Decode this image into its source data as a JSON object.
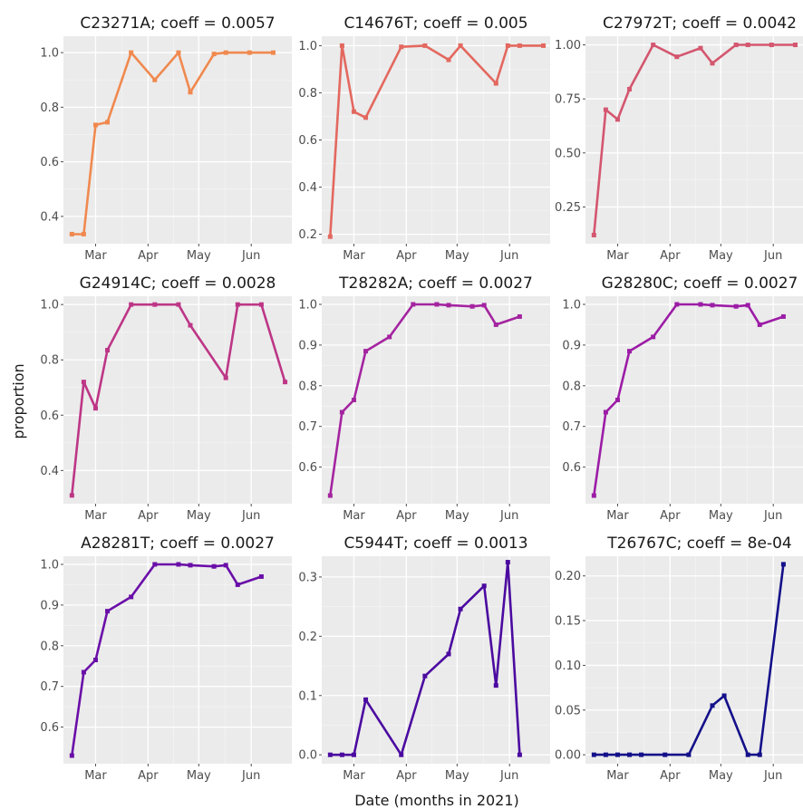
{
  "figure": {
    "xlabel": "Date (months in 2021)",
    "ylabel": "proportion"
  },
  "chart_data": [
    {
      "type": "line",
      "title": "C23271A; coeff = 0.0057",
      "color": "#f0894f",
      "x": [
        "2021-02-15",
        "2021-02-22",
        "2021-03-01",
        "2021-03-08",
        "2021-03-22",
        "2021-04-05",
        "2021-04-19",
        "2021-04-26",
        "2021-05-10",
        "2021-05-17",
        "2021-05-31",
        "2021-06-14"
      ],
      "values": [
        0.335,
        0.335,
        0.735,
        0.745,
        1.0,
        0.9,
        1.0,
        0.855,
        0.995,
        1.0,
        1.0,
        1.0
      ],
      "ylim": [
        0.3,
        1.06
      ],
      "yticks": [
        0.4,
        0.6,
        0.8,
        1.0
      ],
      "ytick_labels": [
        "0.4",
        "0.6",
        "0.8",
        "1.0"
      ],
      "xtick_labels": [
        "Mar",
        "Apr",
        "May",
        "Jun"
      ]
    },
    {
      "type": "line",
      "title": "C14676T; coeff = 0.005",
      "color": "#e3685f",
      "x": [
        "2021-02-15",
        "2021-02-22",
        "2021-03-01",
        "2021-03-08",
        "2021-03-29",
        "2021-04-12",
        "2021-04-26",
        "2021-05-03",
        "2021-05-24",
        "2021-05-31",
        "2021-06-07",
        "2021-06-21"
      ],
      "values": [
        0.19,
        1.0,
        0.72,
        0.695,
        0.995,
        1.0,
        0.94,
        1.0,
        0.84,
        1.0,
        1.0,
        1.0
      ],
      "ylim": [
        0.16,
        1.04
      ],
      "yticks": [
        0.2,
        0.4,
        0.6,
        0.8,
        1.0
      ],
      "ytick_labels": [
        "0.2",
        "0.4",
        "0.6",
        "0.8",
        "1.0"
      ],
      "xtick_labels": [
        "Mar",
        "Apr",
        "May",
        "Jun"
      ]
    },
    {
      "type": "line",
      "title": "C27972T; coeff = 0.0042",
      "color": "#d4566f",
      "x": [
        "2021-02-15",
        "2021-02-22",
        "2021-03-01",
        "2021-03-08",
        "2021-03-22",
        "2021-04-05",
        "2021-04-19",
        "2021-04-26",
        "2021-05-10",
        "2021-05-17",
        "2021-05-31",
        "2021-06-14"
      ],
      "values": [
        0.12,
        0.7,
        0.655,
        0.795,
        1.0,
        0.945,
        0.985,
        0.915,
        1.0,
        1.0,
        1.0,
        1.0
      ],
      "ylim": [
        0.08,
        1.04
      ],
      "yticks": [
        0.25,
        0.5,
        0.75,
        1.0
      ],
      "ytick_labels": [
        "0.25",
        "0.50",
        "0.75",
        "1.00"
      ],
      "xtick_labels": [
        "Mar",
        "Apr",
        "May",
        "Jun"
      ]
    },
    {
      "type": "line",
      "title": "G24914C; coeff = 0.0028",
      "color": "#bd3686",
      "x": [
        "2021-02-15",
        "2021-02-22",
        "2021-03-01",
        "2021-03-08",
        "2021-03-22",
        "2021-04-05",
        "2021-04-19",
        "2021-04-26",
        "2021-05-17",
        "2021-05-24",
        "2021-06-07",
        "2021-06-21"
      ],
      "values": [
        0.31,
        0.72,
        0.625,
        0.835,
        1.0,
        1.0,
        1.0,
        0.925,
        0.735,
        1.0,
        1.0,
        0.72
      ],
      "ylim": [
        0.28,
        1.03
      ],
      "yticks": [
        0.4,
        0.6,
        0.8,
        1.0
      ],
      "ytick_labels": [
        "0.4",
        "0.6",
        "0.8",
        "1.0"
      ],
      "xtick_labels": [
        "Mar",
        "Apr",
        "May",
        "Jun"
      ]
    },
    {
      "type": "line",
      "title": "T28282A; coeff = 0.0027",
      "color": "#a424a0",
      "x": [
        "2021-02-15",
        "2021-02-22",
        "2021-03-01",
        "2021-03-08",
        "2021-03-22",
        "2021-04-05",
        "2021-04-19",
        "2021-04-26",
        "2021-05-10",
        "2021-05-17",
        "2021-05-24",
        "2021-06-07"
      ],
      "values": [
        0.53,
        0.735,
        0.765,
        0.885,
        0.92,
        1.0,
        1.0,
        0.998,
        0.995,
        0.998,
        0.95,
        0.97
      ],
      "ylim": [
        0.51,
        1.02
      ],
      "yticks": [
        0.6,
        0.7,
        0.8,
        0.9,
        1.0
      ],
      "ytick_labels": [
        "0.6",
        "0.7",
        "0.8",
        "0.9",
        "1.0"
      ],
      "xtick_labels": [
        "Mar",
        "Apr",
        "May",
        "Jun"
      ]
    },
    {
      "type": "line",
      "title": "G28280C; coeff = 0.0027",
      "color": "#9c1ca6",
      "x": [
        "2021-02-15",
        "2021-02-22",
        "2021-03-01",
        "2021-03-08",
        "2021-03-22",
        "2021-04-05",
        "2021-04-19",
        "2021-04-26",
        "2021-05-10",
        "2021-05-17",
        "2021-05-24",
        "2021-06-07"
      ],
      "values": [
        0.53,
        0.735,
        0.765,
        0.885,
        0.92,
        1.0,
        1.0,
        0.998,
        0.995,
        0.998,
        0.95,
        0.97
      ],
      "ylim": [
        0.51,
        1.02
      ],
      "yticks": [
        0.6,
        0.7,
        0.8,
        0.9,
        1.0
      ],
      "ytick_labels": [
        "0.6",
        "0.7",
        "0.8",
        "0.9",
        "1.0"
      ],
      "xtick_labels": [
        "Mar",
        "Apr",
        "May",
        "Jun"
      ]
    },
    {
      "type": "line",
      "title": "A28281T; coeff = 0.0027",
      "color": "#6a0ea8",
      "x": [
        "2021-02-15",
        "2021-02-22",
        "2021-03-01",
        "2021-03-08",
        "2021-03-22",
        "2021-04-05",
        "2021-04-19",
        "2021-04-26",
        "2021-05-10",
        "2021-05-17",
        "2021-05-24",
        "2021-06-07"
      ],
      "values": [
        0.53,
        0.735,
        0.765,
        0.885,
        0.92,
        1.0,
        1.0,
        0.998,
        0.995,
        0.998,
        0.95,
        0.97
      ],
      "ylim": [
        0.51,
        1.02
      ],
      "yticks": [
        0.6,
        0.7,
        0.8,
        0.9,
        1.0
      ],
      "ytick_labels": [
        "0.6",
        "0.7",
        "0.8",
        "0.9",
        "1.0"
      ],
      "xtick_labels": [
        "Mar",
        "Apr",
        "May",
        "Jun"
      ]
    },
    {
      "type": "line",
      "title": "C5944T; coeff = 0.0013",
      "color": "#4b0aa0",
      "x": [
        "2021-02-15",
        "2021-02-22",
        "2021-03-01",
        "2021-03-08",
        "2021-03-29",
        "2021-04-12",
        "2021-04-26",
        "2021-05-03",
        "2021-05-17",
        "2021-05-24",
        "2021-05-31",
        "2021-06-07"
      ],
      "values": [
        0.0,
        0.0,
        0.0,
        0.093,
        0.0,
        0.133,
        0.17,
        0.246,
        0.285,
        0.117,
        0.325,
        0.0
      ],
      "ylim": [
        -0.015,
        0.335
      ],
      "yticks": [
        0.0,
        0.1,
        0.2,
        0.3
      ],
      "ytick_labels": [
        "0.0",
        "0.1",
        "0.2",
        "0.3"
      ],
      "xtick_labels": [
        "Mar",
        "Apr",
        "May",
        "Jun"
      ]
    },
    {
      "type": "line",
      "title": "T26767C; coeff = 8e-04",
      "color": "#14108a",
      "x": [
        "2021-02-15",
        "2021-02-22",
        "2021-03-01",
        "2021-03-08",
        "2021-03-15",
        "2021-03-29",
        "2021-04-12",
        "2021-04-26",
        "2021-05-03",
        "2021-05-17",
        "2021-05-24",
        "2021-06-07"
      ],
      "values": [
        0.0,
        0.0,
        0.0,
        0.0,
        0.0,
        0.0,
        0.0,
        0.055,
        0.066,
        0.0,
        0.0,
        0.213
      ],
      "ylim": [
        -0.01,
        0.222
      ],
      "yticks": [
        0.0,
        0.05,
        0.1,
        0.15,
        0.2
      ],
      "ytick_labels": [
        "0.00",
        "0.05",
        "0.10",
        "0.15",
        "0.20"
      ],
      "xtick_labels": [
        "Mar",
        "Apr",
        "May",
        "Jun"
      ]
    }
  ]
}
